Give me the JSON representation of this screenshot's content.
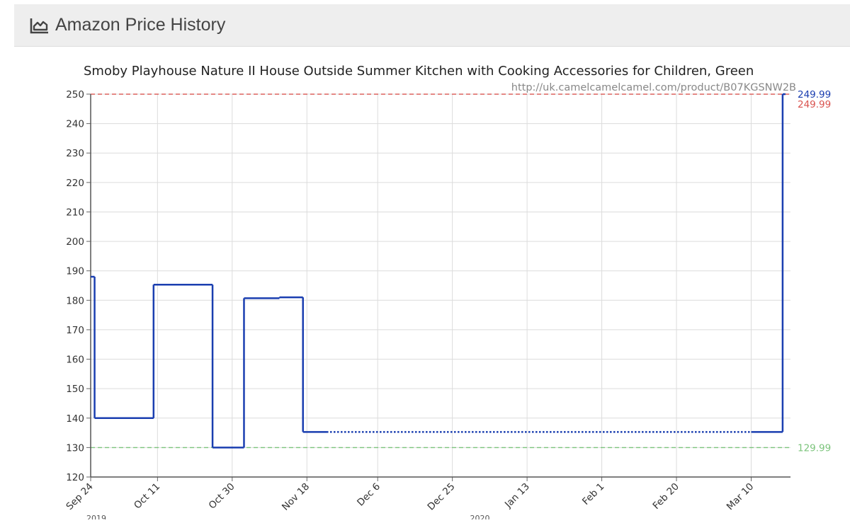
{
  "header": {
    "title": "Amazon Price History",
    "icon": "area-chart-icon"
  },
  "chart_data": {
    "type": "line",
    "title": "Smoby Playhouse Nature II House Outside Summer Kitchen with Cooking Accessories for Children, Green",
    "source_url": "http://uk.camelcamelcamel.com/product/B07KGSNW2B",
    "xlabel": "",
    "ylabel": "",
    "ylim": [
      120,
      250
    ],
    "yticks": [
      120,
      130,
      140,
      150,
      160,
      170,
      180,
      190,
      200,
      210,
      220,
      230,
      240,
      250
    ],
    "xlim": [
      "2019-09-24",
      "2020-03-20"
    ],
    "xticks": [
      {
        "date": "2019-09-24",
        "label": "Sep 24"
      },
      {
        "date": "2019-10-11",
        "label": "Oct 11"
      },
      {
        "date": "2019-10-30",
        "label": "Oct 30"
      },
      {
        "date": "2019-11-18",
        "label": "Nov 18"
      },
      {
        "date": "2019-12-06",
        "label": "Dec 6"
      },
      {
        "date": "2019-12-25",
        "label": "Dec 25"
      },
      {
        "date": "2020-01-13",
        "label": "Jan 13"
      },
      {
        "date": "2020-02-01",
        "label": "Feb 1"
      },
      {
        "date": "2020-02-20",
        "label": "Feb 20"
      },
      {
        "date": "2020-03-10",
        "label": "Mar 10"
      }
    ],
    "year_labels": [
      {
        "date": "2019-09-24",
        "label": "2019"
      },
      {
        "date": "2020-01-01",
        "label": "2020"
      }
    ],
    "grid": true,
    "series": [
      {
        "color": "#1a3eb0",
        "step": true,
        "points": [
          {
            "x": "2019-09-24",
            "y": 188
          },
          {
            "x": "2019-09-25",
            "y": 140
          },
          {
            "x": "2019-10-10",
            "y": 185.3
          },
          {
            "x": "2019-10-25",
            "y": 130
          },
          {
            "x": "2019-11-02",
            "y": 180.7
          },
          {
            "x": "2019-11-11",
            "y": 181
          },
          {
            "x": "2019-11-17",
            "y": 135.3
          },
          {
            "x": "2019-11-23",
            "y": 135.3
          },
          {
            "x": "2020-03-10",
            "y": 135.3,
            "style": "dotted"
          },
          {
            "x": "2020-03-18",
            "y": 249.99
          }
        ],
        "end_date": "2020-03-18"
      }
    ],
    "reference_lines": [
      {
        "value": 249.99,
        "label": "249.99",
        "color": "#d9534f",
        "kind": "highest"
      },
      {
        "value": 129.99,
        "label": "129.99",
        "color": "#7cc47c",
        "kind": "lowest"
      }
    ],
    "current_value": {
      "value": 249.99,
      "label": "249.99",
      "color": "#1a3eb0"
    }
  }
}
